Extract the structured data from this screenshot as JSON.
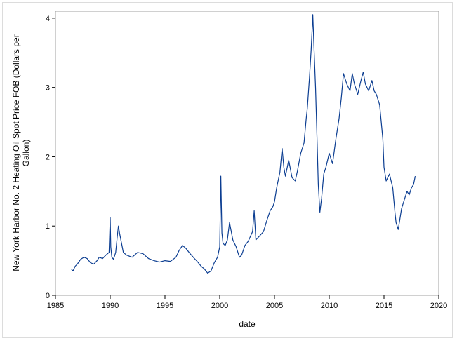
{
  "chart_data": {
    "type": "line",
    "title": "",
    "xlabel": "date",
    "ylabel": "New York Harbor No. 2 Heating Oil Spot Price FOB (Dollars per Gallon)",
    "ylabel_lines": [
      "New York Harbor No. 2 Heating Oil Spot Price FOB (Dollars per",
      "Gallon)"
    ],
    "xlim": [
      1985,
      2020
    ],
    "ylim": [
      0,
      4.1
    ],
    "xticks": [
      1985,
      1990,
      1995,
      2000,
      2005,
      2010,
      2015,
      2020
    ],
    "yticks": [
      0,
      1,
      2,
      3,
      4
    ],
    "grid": false,
    "line_color": "#0b3d91",
    "series": [
      {
        "x": [
          1986.45,
          1986.6,
          1986.8,
          1987.0,
          1987.3,
          1987.6,
          1987.9,
          1988.2,
          1988.5,
          1988.8,
          1989.0,
          1989.3,
          1989.6,
          1989.9,
          1990.0,
          1990.05,
          1990.15,
          1990.3,
          1990.5,
          1990.65,
          1990.75,
          1990.85,
          1991.0,
          1991.2,
          1991.5,
          1992.0,
          1992.5,
          1993.0,
          1993.5,
          1994.0,
          1994.5,
          1995.0,
          1995.5,
          1996.0,
          1996.3,
          1996.6,
          1996.9,
          1997.3,
          1997.7,
          1998.0,
          1998.3,
          1998.6,
          1998.9,
          1999.2,
          1999.5,
          1999.8,
          2000.0,
          2000.1,
          2000.2,
          2000.3,
          2000.5,
          2000.7,
          2000.9,
          2001.2,
          2001.5,
          2001.8,
          2002.0,
          2002.3,
          2002.6,
          2003.0,
          2003.15,
          2003.3,
          2003.6,
          2004.0,
          2004.3,
          2004.6,
          2004.85,
          2005.0,
          2005.2,
          2005.5,
          2005.7,
          2005.85,
          2006.0,
          2006.3,
          2006.6,
          2006.9,
          2007.1,
          2007.4,
          2007.7,
          2007.9,
          2008.0,
          2008.2,
          2008.35,
          2008.5,
          2008.6,
          2008.75,
          2008.9,
          2009.0,
          2009.15,
          2009.3,
          2009.5,
          2009.7,
          2010.0,
          2010.3,
          2010.6,
          2010.9,
          2011.1,
          2011.3,
          2011.6,
          2011.9,
          2012.1,
          2012.3,
          2012.6,
          2012.9,
          2013.1,
          2013.3,
          2013.6,
          2013.9,
          2014.1,
          2014.3,
          2014.6,
          2014.9,
          2015.0,
          2015.2,
          2015.5,
          2015.8,
          2016.0,
          2016.1,
          2016.3,
          2016.6,
          2016.9,
          2017.1,
          2017.3,
          2017.5,
          2017.7,
          2017.85
        ],
        "y": [
          0.38,
          0.35,
          0.42,
          0.45,
          0.52,
          0.55,
          0.53,
          0.47,
          0.45,
          0.5,
          0.55,
          0.53,
          0.58,
          0.62,
          1.12,
          0.7,
          0.55,
          0.52,
          0.62,
          0.85,
          1.0,
          0.9,
          0.78,
          0.62,
          0.58,
          0.55,
          0.62,
          0.6,
          0.53,
          0.5,
          0.48,
          0.5,
          0.49,
          0.55,
          0.65,
          0.72,
          0.68,
          0.6,
          0.53,
          0.48,
          0.42,
          0.38,
          0.32,
          0.35,
          0.47,
          0.55,
          0.7,
          1.72,
          0.9,
          0.75,
          0.72,
          0.8,
          1.05,
          0.8,
          0.7,
          0.55,
          0.58,
          0.72,
          0.78,
          0.92,
          1.22,
          0.8,
          0.85,
          0.92,
          1.08,
          1.22,
          1.28,
          1.35,
          1.55,
          1.78,
          2.12,
          1.85,
          1.72,
          1.95,
          1.7,
          1.65,
          1.8,
          2.05,
          2.2,
          2.55,
          2.7,
          3.15,
          3.55,
          4.05,
          3.6,
          3.0,
          2.2,
          1.6,
          1.2,
          1.4,
          1.75,
          1.85,
          2.05,
          1.9,
          2.25,
          2.55,
          2.85,
          3.2,
          3.05,
          2.95,
          3.2,
          3.05,
          2.9,
          3.1,
          3.22,
          3.05,
          2.95,
          3.1,
          2.95,
          2.9,
          2.75,
          2.25,
          1.85,
          1.65,
          1.75,
          1.55,
          1.2,
          1.05,
          0.95,
          1.25,
          1.4,
          1.5,
          1.45,
          1.55,
          1.6,
          1.72
        ]
      }
    ]
  }
}
